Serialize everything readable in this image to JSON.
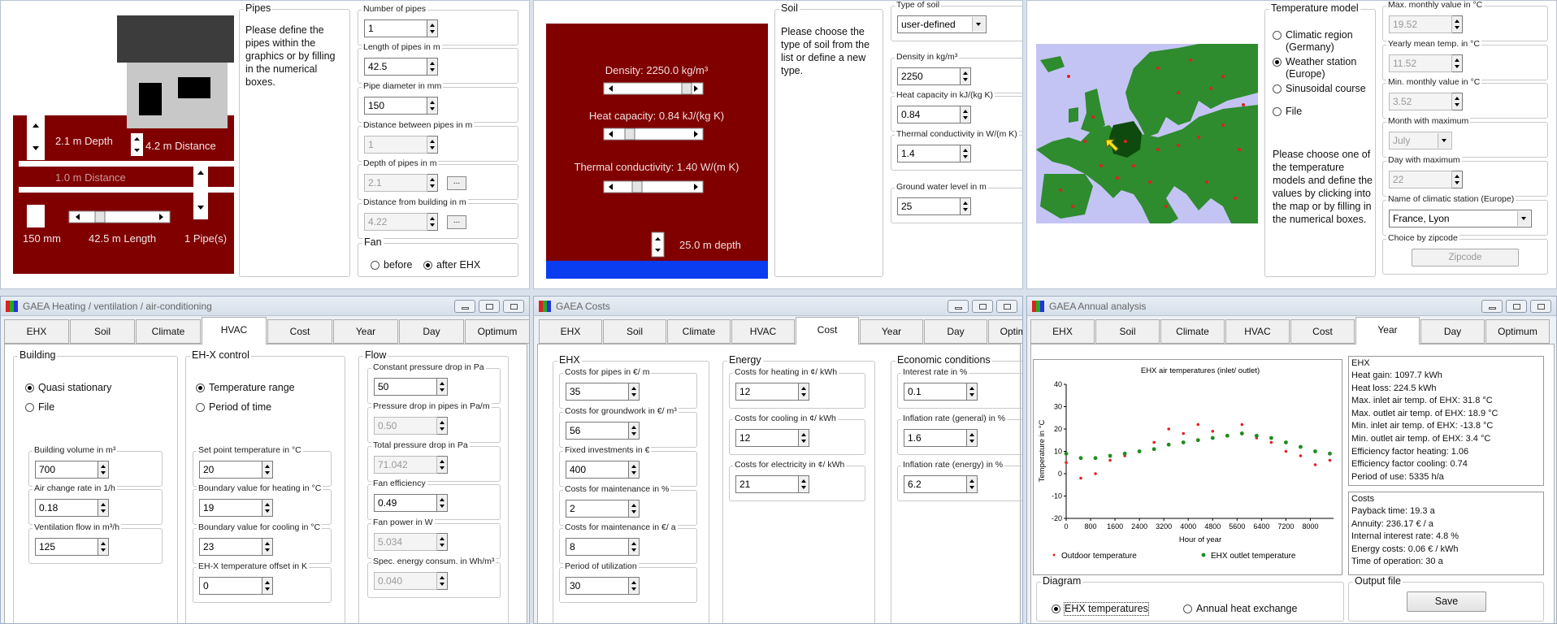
{
  "pipes_panel": {
    "drawing": {
      "depth": "2.1 m Depth",
      "building_distance": "4.2 m Distance",
      "pipe_distance": "1.0 m Distance",
      "diameter": "150 mm",
      "length": "42.5 m Length",
      "count": "1 Pipe(s)"
    },
    "group": {
      "title": "Pipes",
      "text": "Please define the pipes within the graphics or by filling in the numerical boxes."
    },
    "fields": [
      {
        "label": "Number of pipes",
        "value": "1"
      },
      {
        "label": "Length of pipes in m",
        "value": "42.5"
      },
      {
        "label": "Pipe diameter in mm",
        "value": "150"
      },
      {
        "label": "Distance between pipes in m",
        "value": "1",
        "enabled": false
      },
      {
        "label": "Depth of pipes in m",
        "value": "2.1",
        "enabled": false,
        "button": "..."
      },
      {
        "label": "Distance from building in m",
        "value": "4.22",
        "enabled": false,
        "button": "..."
      }
    ],
    "fan": {
      "title": "Fan",
      "options": [
        "before",
        "after EHX"
      ],
      "selected": 1
    }
  },
  "soil_panel": {
    "drawing": {
      "density": "Density: 2250.0 kg/m³",
      "heat_capacity": "Heat capacity: 0.84 kJ/(kg K)",
      "conductivity": "Thermal conductivity: 1.40 W/(m K)",
      "depth": "25.0 m depth"
    },
    "group": {
      "title": "Soil",
      "text": "Please choose the type of soil from the list or define a new type."
    },
    "fields": [
      {
        "label": "Type of soil",
        "value": "user-defined",
        "widget": "combo"
      },
      {
        "label": "Density in kg/m³",
        "value": "2250"
      },
      {
        "label": "Heat capacity in kJ/(kg K)",
        "value": "0.84"
      },
      {
        "label": "Thermal conductivity in W/(m K)",
        "value": "1.4"
      },
      {
        "label": "Ground water level in m",
        "value": "25"
      }
    ]
  },
  "climate_panel": {
    "group": {
      "title": "Temperature model",
      "options": [
        "Climatic region (Germany)",
        "Weather station (Europe)",
        "Sinusoidal course",
        "File"
      ],
      "selected": 1,
      "text": "Please choose one of the temperature models and define the values by clicking into the map or by filling in the numerical boxes."
    },
    "fields": [
      {
        "label": "Max. monthly value in °C",
        "value": "19.52",
        "enabled": false
      },
      {
        "label": "Yearly mean temp. in °C",
        "value": "11.52",
        "enabled": false
      },
      {
        "label": "Min. monthly value in °C",
        "value": "3.52",
        "enabled": false
      },
      {
        "label": "Month with maximum",
        "value": "July",
        "enabled": false,
        "widget": "combo"
      },
      {
        "label": "Day with maximum",
        "value": "22",
        "enabled": false
      },
      {
        "label": "Name of climatic station (Europe)",
        "value": "France, Lyon",
        "widget": "combo"
      },
      {
        "label": "Choice by zipcode",
        "button": "Zipcode",
        "enabled": false
      }
    ]
  },
  "tabs": [
    "EHX",
    "Soil",
    "Climate",
    "HVAC",
    "Cost",
    "Year",
    "Day",
    "Optimum"
  ],
  "hvac_window": {
    "title": "GAEA Heating / ventilation / air-conditioning",
    "active_tab": 3,
    "groups": [
      {
        "title": "Building",
        "options": [
          "Quasi stationary",
          "File"
        ],
        "selected": 0,
        "fields": [
          {
            "label": "Building volume in m³",
            "value": "700"
          },
          {
            "label": "Air change rate in 1/h",
            "value": "0.18"
          },
          {
            "label": "Ventilation flow in m³/h",
            "value": "125"
          }
        ]
      },
      {
        "title": "EH-X control",
        "options": [
          "Temperature range",
          "Period of time"
        ],
        "selected": 0,
        "fields": [
          {
            "label": "Set point temperature in °C",
            "value": "20"
          },
          {
            "label": "Boundary value for heating in °C",
            "value": "19"
          },
          {
            "label": "Boundary value for cooling in °C",
            "value": "23"
          },
          {
            "label": "EH-X temperature offset in K",
            "value": "0"
          }
        ]
      },
      {
        "title": "Flow",
        "fields": [
          {
            "label": "Constant pressure drop in Pa",
            "value": "50"
          },
          {
            "label": "Pressure drop in pipes in Pa/m",
            "value": "0.50",
            "enabled": false
          },
          {
            "label": "Total pressure drop in Pa",
            "value": "71.042",
            "enabled": false
          },
          {
            "label": "Fan efficiency",
            "value": "0.49"
          },
          {
            "label": "Fan power in W",
            "value": "5.034",
            "enabled": false
          },
          {
            "label": "Spec. energy consum. in Wh/m³",
            "value": "0.040",
            "enabled": false
          }
        ]
      }
    ]
  },
  "costs_window": {
    "title": "GAEA Costs",
    "active_tab": 4,
    "groups": [
      {
        "title": "EHX",
        "fields": [
          {
            "label": "Costs for pipes in €/ m",
            "value": "35"
          },
          {
            "label": "Costs for groundwork in €/ m³",
            "value": "56"
          },
          {
            "label": "Fixed investments in €",
            "value": "400"
          },
          {
            "label": "Costs for maintenance in %",
            "value": "2"
          },
          {
            "label": "Costs for maintenance in €/ a",
            "value": "8"
          },
          {
            "label": "Period of utilization",
            "value": "30"
          }
        ]
      },
      {
        "title": "Energy",
        "fields": [
          {
            "label": "Costs for heating in ¢/ kWh",
            "value": "12"
          },
          {
            "label": "Costs for cooling in ¢/ kWh",
            "value": "12"
          },
          {
            "label": "Costs for electricity in ¢/ kWh",
            "value": "21"
          }
        ]
      },
      {
        "title": "Economic conditions",
        "fields": [
          {
            "label": "Interest rate in %",
            "value": "0.1"
          },
          {
            "label": "Inflation rate (general) in %",
            "value": "1.6"
          },
          {
            "label": "Inflation rate (energy) in %",
            "value": "6.2"
          }
        ]
      }
    ]
  },
  "annual_window": {
    "title": "GAEA Annual analysis",
    "active_tab": 5,
    "summary": [
      {
        "title": "EHX",
        "lines": [
          "Heat gain: 1097.7 kWh",
          "Heat loss: 224.5 kWh",
          "Max. inlet air temp. of EHX: 31.8 °C",
          "Max. outlet air temp. of EHX: 18.9 °C",
          "Min. inlet air temp. of EHX: -13.8 °C",
          "Min. outlet air temp. of EHX: 3.4 °C",
          "Efficiency factor heating: 1.06",
          "Efficiency factor cooling: 0.74",
          "Period of use: 5335 h/a"
        ]
      },
      {
        "title": "Costs",
        "lines": [
          "Payback time: 19.3 a",
          "Annuity: 236.17 € / a",
          "Internal interest rate: 4.8 %",
          "Energy costs: 0.06 € / kWh",
          "Time of operation: 30 a"
        ]
      }
    ],
    "diagram": {
      "title": "Diagram",
      "options": [
        "EHX temperatures",
        "Annual heat exchange"
      ],
      "selected": 0
    },
    "output": {
      "title": "Output file",
      "button": "Save"
    }
  },
  "chart_data": {
    "type": "scatter",
    "title": "EHX air temperatures (inlet/ outlet)",
    "x_label": "Hour of year",
    "y_label": "Temperature in °C",
    "x": [
      0,
      480,
      960,
      1440,
      1920,
      2400,
      2880,
      3360,
      3840,
      4320,
      4800,
      5280,
      5760,
      6240,
      6720,
      7200,
      7680,
      8160,
      8640
    ],
    "series": [
      {
        "name": "Outdoor temperature",
        "color": "#e32222",
        "values": [
          5,
          -2,
          0,
          6,
          8,
          10,
          14,
          20,
          18,
          22,
          19,
          17,
          22,
          16,
          14,
          10,
          8,
          4,
          6
        ]
      },
      {
        "name": "EHX outlet temperature",
        "color": "#1e8c1e",
        "values": [
          9,
          7,
          7,
          8,
          9,
          10,
          11,
          13,
          14,
          15,
          16,
          17,
          18,
          17,
          16,
          14,
          12,
          10,
          9
        ]
      }
    ],
    "xlim": [
      0,
      8760
    ],
    "ylim": [
      -20,
      40
    ],
    "xticks": [
      0,
      800,
      1600,
      2400,
      3200,
      4000,
      4800,
      5600,
      6400,
      7200,
      8000
    ],
    "yticks": [
      -20,
      -10,
      0,
      10,
      20,
      30,
      40
    ]
  }
}
